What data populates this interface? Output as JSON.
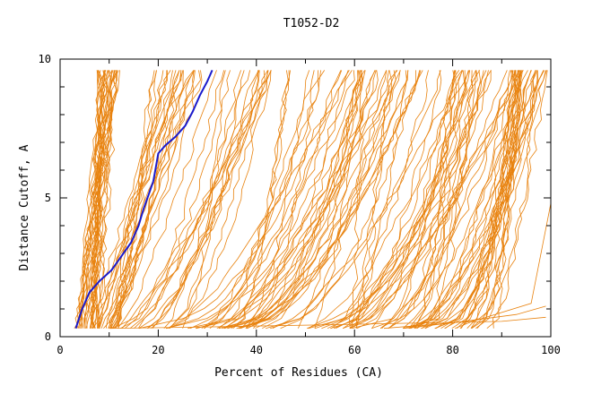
{
  "chart_data": {
    "type": "line",
    "title": "T1052-D2",
    "xlabel": "Percent of Residues (CA)",
    "ylabel": "Distance Cutoff, A",
    "xlim": [
      0,
      100
    ],
    "ylim": [
      0,
      10
    ],
    "x_ticks": [
      0,
      20,
      40,
      60,
      80,
      100
    ],
    "y_ticks": [
      0,
      5,
      10
    ],
    "grid": false,
    "legend": "none",
    "colors": {
      "models": "#e8820e",
      "highlight": "#1a1acc",
      "axis": "#000000"
    },
    "highlight_series": {
      "x": [
        3.2,
        4.5,
        6.0,
        8.0,
        10.5,
        12.5,
        14.5,
        16.0,
        17.0,
        18.0,
        19.0,
        19.5,
        20.0,
        21.5,
        23.5,
        25.5,
        27.0,
        28.5,
        30.0,
        31.0
      ],
      "y": [
        0.3,
        1.0,
        1.6,
        2.0,
        2.4,
        2.9,
        3.4,
        4.0,
        4.6,
        5.1,
        5.6,
        6.1,
        6.6,
        6.9,
        7.2,
        7.6,
        8.1,
        8.7,
        9.2,
        9.6
      ]
    },
    "bundles": [
      {
        "x0": [
          3,
          8
        ],
        "x1": [
          8,
          12
        ],
        "shape": 1.0,
        "n": 28
      },
      {
        "x0": [
          6,
          12
        ],
        "x1": [
          18,
          30
        ],
        "shape": 0.9,
        "n": 22
      },
      {
        "x0": [
          10,
          25
        ],
        "x1": [
          30,
          45
        ],
        "shape": 0.7,
        "n": 18
      },
      {
        "x0": [
          15,
          40
        ],
        "x1": [
          45,
          70
        ],
        "shape": 0.6,
        "n": 26
      },
      {
        "x0": [
          30,
          60
        ],
        "x1": [
          60,
          85
        ],
        "shape": 0.6,
        "n": 24
      },
      {
        "x0": [
          50,
          75
        ],
        "x1": [
          80,
          96
        ],
        "shape": 0.55,
        "n": 28
      },
      {
        "x0": [
          70,
          88
        ],
        "x1": [
          92,
          99
        ],
        "shape": 0.5,
        "n": 30
      }
    ],
    "low_lines": [
      {
        "x": [
          10,
          30,
          60,
          90,
          99
        ],
        "y": [
          0.3,
          0.35,
          0.45,
          0.55,
          0.7
        ]
      },
      {
        "x": [
          66,
          80,
          93,
          99
        ],
        "y": [
          0.3,
          0.5,
          0.8,
          1.1
        ]
      },
      {
        "x": [
          70,
          85,
          96,
          100
        ],
        "y": [
          0.3,
          0.6,
          1.2,
          4.8
        ]
      }
    ]
  }
}
